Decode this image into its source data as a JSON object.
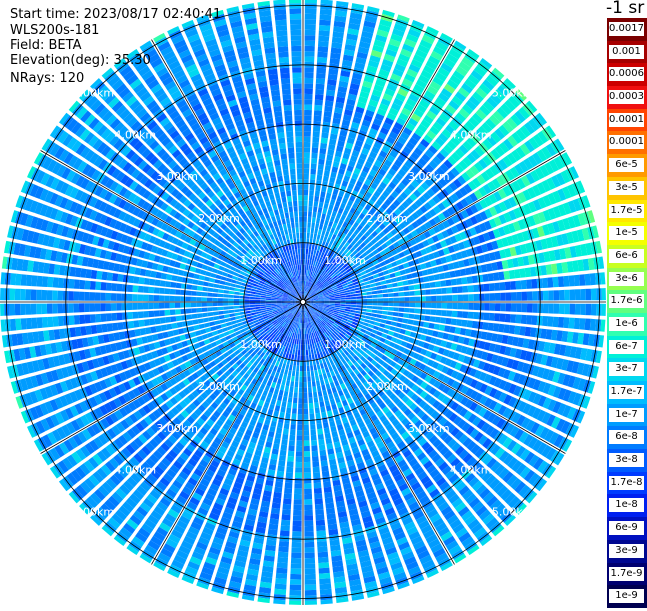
{
  "header": {
    "start_time": "Start time: 2023/08/17 02:40:41",
    "instrument": "WLS200s-181",
    "field": "Field: BETA",
    "elevation": "Elevation(deg): 35.30",
    "nrays": "NRays: 120"
  },
  "colorbar": {
    "unit_label": "-1 sr",
    "entries": [
      {
        "label": "0.0017",
        "color": "#7a0000"
      },
      {
        "label": "0.001",
        "color": "#a60000"
      },
      {
        "label": "0.0006",
        "color": "#cc0000"
      },
      {
        "label": "0.0003",
        "color": "#f01010"
      },
      {
        "label": "0.00017",
        "color": "#ff4400"
      },
      {
        "label": "0.0001",
        "color": "#ff7000"
      },
      {
        "label": "6e-5",
        "color": "#ff9a00"
      },
      {
        "label": "3e-5",
        "color": "#ffc400"
      },
      {
        "label": "1.7e-5",
        "color": "#ffe800"
      },
      {
        "label": "1e-5",
        "color": "#f4ff00"
      },
      {
        "label": "6e-6",
        "color": "#c8ff20"
      },
      {
        "label": "3e-6",
        "color": "#96ff50"
      },
      {
        "label": "1.7e-6",
        "color": "#60ff80"
      },
      {
        "label": "1e-6",
        "color": "#30ffb0"
      },
      {
        "label": "6e-7",
        "color": "#00f0d8"
      },
      {
        "label": "3e-7",
        "color": "#00d8f0"
      },
      {
        "label": "1.7e-7",
        "color": "#00bcff"
      },
      {
        "label": "1e-7",
        "color": "#009cff"
      },
      {
        "label": "6e-8",
        "color": "#007cff"
      },
      {
        "label": "3e-8",
        "color": "#005cff"
      },
      {
        "label": "1.7e-8",
        "color": "#003cff"
      },
      {
        "label": "1e-8",
        "color": "#0020f0"
      },
      {
        "label": "6e-9",
        "color": "#0010c0"
      },
      {
        "label": "3e-9",
        "color": "#000890"
      },
      {
        "label": "1.7e-9",
        "color": "#000070"
      },
      {
        "label": "1e-9",
        "color": "#000050"
      }
    ]
  },
  "chart_data": {
    "type": "heatmap",
    "projection": "polar",
    "field": "BETA",
    "n_rays": 120,
    "elevation_deg": 35.3,
    "rings_km": [
      1,
      2,
      3,
      4,
      5
    ],
    "ring_labels": [
      "1.00km",
      "2.00km",
      "3.00km",
      "4.00km",
      "5.00km"
    ],
    "max_range_km": 5.6,
    "spoke_step_deg": 30,
    "profile": [
      {
        "range_km": 0.5,
        "level": "3e-8"
      },
      {
        "range_km": 1.5,
        "level": "1e-7"
      },
      {
        "range_km": 2.5,
        "level": "1e-7"
      },
      {
        "range_km": 3.5,
        "level": "6e-8"
      },
      {
        "range_km": 4.5,
        "level": "1e-7"
      },
      {
        "range_km": 5.5,
        "level": "3e-7"
      }
    ],
    "enhanced_sector": {
      "azimuth_deg": [
        15,
        85
      ],
      "range_km": [
        3.4,
        5.6
      ],
      "level": "6e-7"
    }
  }
}
